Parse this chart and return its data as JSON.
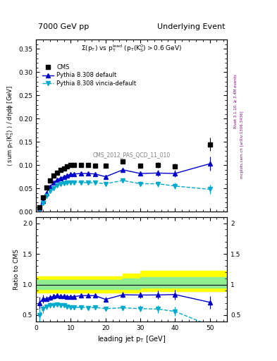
{
  "title_left": "7000 GeV pp",
  "title_right": "Underlying Event",
  "annotation": "CMS_2012_PAS_QCD_11_010",
  "right_label_top": "Rivet 3.1.10, ≥ 3.4M events",
  "right_label_bottom": "mcplots.cern.ch [arXiv:1306.3436]",
  "ylabel_main": "⟨ sum p_T(K_S^0) ⟩ / dηdϕ [GeV]",
  "ylabel_ratio": "Ratio to CMS",
  "xlabel": "leading jet p_T [GeV]",
  "xlim": [
    0,
    55
  ],
  "ylim_main": [
    0,
    0.37
  ],
  "ylim_ratio": [
    0.4,
    2.1
  ],
  "cms_x": [
    1.0,
    2.0,
    3.0,
    4.0,
    5.0,
    6.0,
    7.0,
    8.0,
    9.0,
    10.0,
    11.0,
    13.0,
    15.0,
    17.0,
    20.0,
    25.0,
    30.0,
    35.0,
    40.0,
    50.0
  ],
  "cms_y": [
    0.01,
    0.03,
    0.052,
    0.067,
    0.077,
    0.083,
    0.089,
    0.093,
    0.097,
    0.1,
    0.101,
    0.1,
    0.1,
    0.099,
    0.099,
    0.108,
    0.099,
    0.1,
    0.098,
    0.145
  ],
  "cms_yerr": [
    0.002,
    0.003,
    0.004,
    0.004,
    0.004,
    0.004,
    0.004,
    0.004,
    0.004,
    0.004,
    0.004,
    0.004,
    0.004,
    0.004,
    0.004,
    0.005,
    0.005,
    0.006,
    0.006,
    0.015
  ],
  "pythia_default_x": [
    1.0,
    2.0,
    3.0,
    4.0,
    5.0,
    6.0,
    7.0,
    8.0,
    9.0,
    10.0,
    11.0,
    13.0,
    15.0,
    17.0,
    20.0,
    25.0,
    30.0,
    35.0,
    40.0,
    50.0
  ],
  "pythia_default_y": [
    0.007,
    0.023,
    0.04,
    0.053,
    0.062,
    0.068,
    0.072,
    0.075,
    0.078,
    0.08,
    0.081,
    0.082,
    0.082,
    0.081,
    0.075,
    0.09,
    0.082,
    0.083,
    0.082,
    0.103
  ],
  "pythia_default_yerr": [
    0.001,
    0.002,
    0.002,
    0.003,
    0.003,
    0.003,
    0.003,
    0.003,
    0.003,
    0.003,
    0.003,
    0.003,
    0.003,
    0.003,
    0.004,
    0.005,
    0.005,
    0.007,
    0.008,
    0.015
  ],
  "pythia_vincia_x": [
    1.0,
    2.0,
    3.0,
    4.0,
    5.0,
    6.0,
    7.0,
    8.0,
    9.0,
    10.0,
    11.0,
    13.0,
    15.0,
    17.0,
    20.0,
    25.0,
    30.0,
    35.0,
    40.0,
    50.0
  ],
  "pythia_vincia_y": [
    0.005,
    0.018,
    0.033,
    0.044,
    0.051,
    0.056,
    0.059,
    0.061,
    0.062,
    0.063,
    0.063,
    0.063,
    0.062,
    0.062,
    0.06,
    0.067,
    0.06,
    0.06,
    0.055,
    0.048
  ],
  "pythia_vincia_yerr": [
    0.001,
    0.002,
    0.002,
    0.003,
    0.003,
    0.003,
    0.003,
    0.003,
    0.003,
    0.003,
    0.003,
    0.003,
    0.003,
    0.003,
    0.003,
    0.004,
    0.005,
    0.006,
    0.007,
    0.01
  ],
  "cms_color": "black",
  "pythia_default_color": "#0000cc",
  "pythia_vincia_color": "#00aacc",
  "band_yellow_x": [
    0,
    10,
    20,
    25,
    30,
    55
  ],
  "band_yellow_y_lo": [
    0.87,
    0.87,
    0.87,
    0.87,
    0.89,
    0.89
  ],
  "band_yellow_y_hi": [
    1.13,
    1.13,
    1.13,
    1.18,
    1.22,
    1.22
  ],
  "band_green_x": [
    0,
    10,
    20,
    25,
    30,
    55
  ],
  "band_green_y_lo": [
    0.93,
    0.93,
    0.93,
    0.93,
    0.95,
    0.95
  ],
  "band_green_y_hi": [
    1.07,
    1.07,
    1.07,
    1.1,
    1.12,
    1.12
  ]
}
